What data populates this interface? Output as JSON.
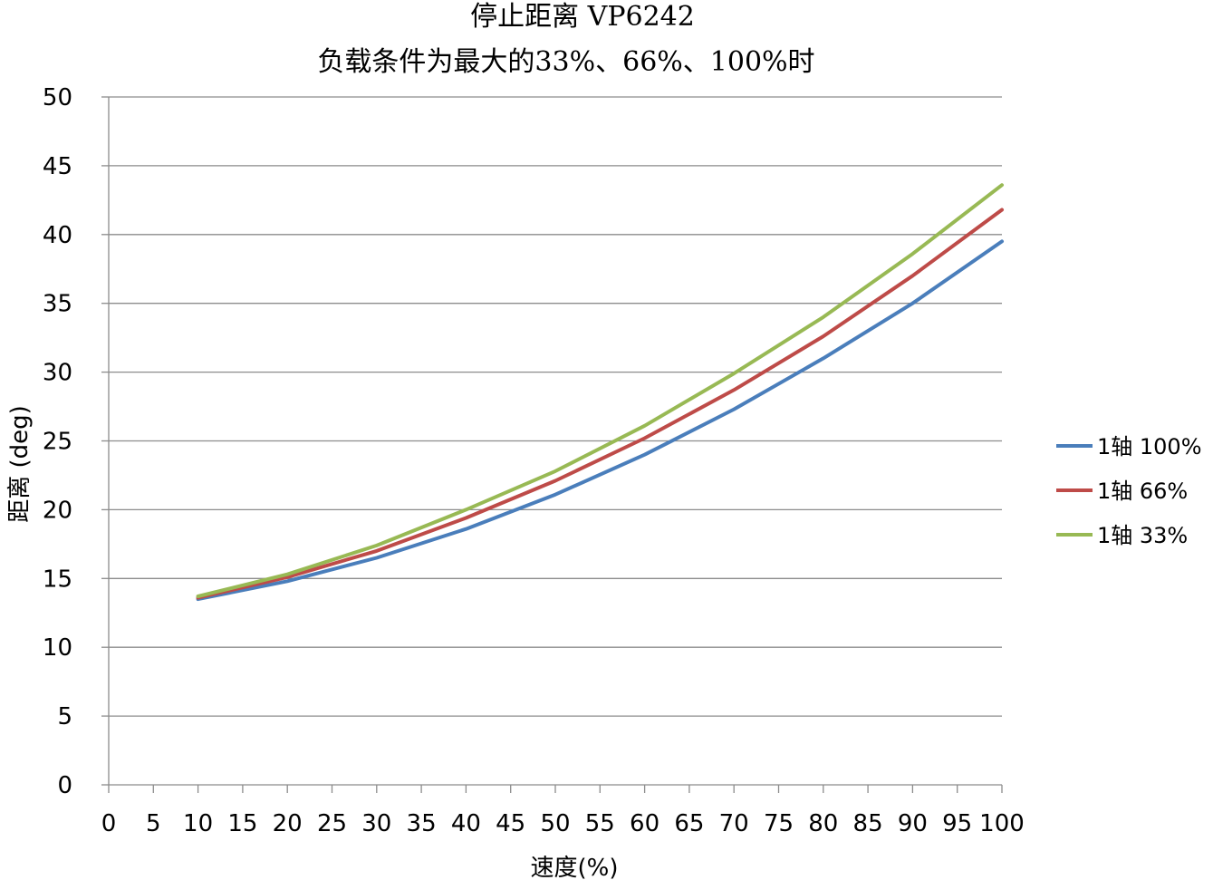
{
  "chart_data": {
    "type": "line",
    "title": "停止距离 VP6242",
    "subtitle": "负载条件为最大的33%、66%、100%时",
    "xlabel": "速度(%)",
    "ylabel": "距离 (deg)",
    "xlim": [
      0,
      100
    ],
    "ylim": [
      0,
      50
    ],
    "x_ticks": [
      "0",
      "5",
      "10",
      "15",
      "20",
      "25",
      "30",
      "35",
      "40",
      "45",
      "50",
      "55",
      "60",
      "65",
      "70",
      "75",
      "80",
      "85",
      "90",
      "95",
      "100"
    ],
    "y_ticks": [
      "0",
      "5",
      "10",
      "15",
      "20",
      "25",
      "30",
      "35",
      "40",
      "45",
      "50"
    ],
    "grid": true,
    "legend_position": "right",
    "x": [
      10,
      20,
      30,
      40,
      50,
      60,
      70,
      80,
      90,
      100
    ],
    "series": [
      {
        "name": "1轴 100%",
        "color": "#4a7ebb",
        "values": [
          13.5,
          14.8,
          16.5,
          18.6,
          21.1,
          24.0,
          27.3,
          31.0,
          35.0,
          39.5
        ]
      },
      {
        "name": "1轴 66%",
        "color": "#be4b48",
        "values": [
          13.6,
          15.1,
          17.0,
          19.4,
          22.1,
          25.2,
          28.7,
          32.6,
          37.0,
          41.8
        ]
      },
      {
        "name": "1轴 33%",
        "color": "#98b954",
        "values": [
          13.7,
          15.3,
          17.4,
          20.0,
          22.8,
          26.1,
          29.9,
          34.0,
          38.6,
          43.6
        ]
      }
    ]
  }
}
